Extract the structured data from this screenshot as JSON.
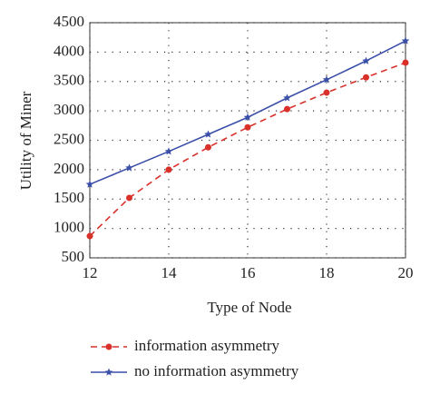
{
  "chart_data": {
    "type": "line",
    "x_label": "Type of Node",
    "y_label": "Utility of Miner",
    "x": [
      12,
      13,
      14,
      15,
      16,
      17,
      18,
      19,
      20
    ],
    "series": [
      {
        "name": "information asymmetry",
        "color": "#d9302a",
        "dashed": true,
        "marker": "circle",
        "values": [
          870,
          1520,
          2000,
          2380,
          2720,
          3030,
          3310,
          3570,
          3820
        ]
      },
      {
        "name": "no information asymmetry",
        "color": "#3a4fa8",
        "dashed": false,
        "marker": "star",
        "values": [
          1750,
          2030,
          2310,
          2600,
          2890,
          3220,
          3530,
          3850,
          4190
        ]
      }
    ],
    "xlim": [
      12,
      20
    ],
    "xticks": [
      12,
      14,
      16,
      18,
      20
    ],
    "ylim": [
      500,
      4500
    ],
    "yticks": [
      500,
      1000,
      1500,
      2000,
      2500,
      3000,
      3500,
      4000,
      4500
    ],
    "grid": true,
    "legend": "bottom"
  }
}
